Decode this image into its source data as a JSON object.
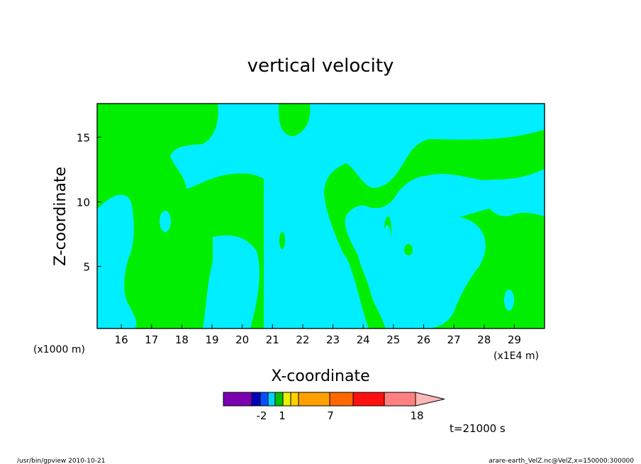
{
  "chart_data": {
    "type": "heatmap",
    "title": "vertical velocity",
    "xlabel": "X-coordinate",
    "ylabel": "Z-coordinate",
    "x_unit_left": "(x1000 m)",
    "x_unit_right": "(x1E4 m)",
    "xlim": [
      15.2,
      30.0
    ],
    "ylim": [
      0.2,
      17.6
    ],
    "x_ticks": [
      16,
      17,
      18,
      19,
      20,
      21,
      22,
      23,
      24,
      25,
      26,
      27,
      28,
      29
    ],
    "y_ticks": [
      5,
      10,
      15
    ],
    "grid": false,
    "background_color": "#00eeff",
    "contour_fill_colors": {
      "near_zero": "#00eeff",
      "positive": "#00ee00"
    },
    "colorbar": {
      "colors": [
        "#7b00b0",
        "#0000b8",
        "#0050ff",
        "#00d0ff",
        "#00c000",
        "#e8f000",
        "#ffd000",
        "#ffa000",
        "#ff6800",
        "#ff1010",
        "#ff8080",
        "#ffb8b8"
      ],
      "tick_labels": [
        "-2",
        "1",
        "7",
        "18"
      ]
    },
    "time_label": "t=21000 s"
  },
  "footer": {
    "left": "/usr/bin/gpview   2010-10-21",
    "right": "arare-earth_VelZ.nc@VelZ,x=150000:300000"
  }
}
